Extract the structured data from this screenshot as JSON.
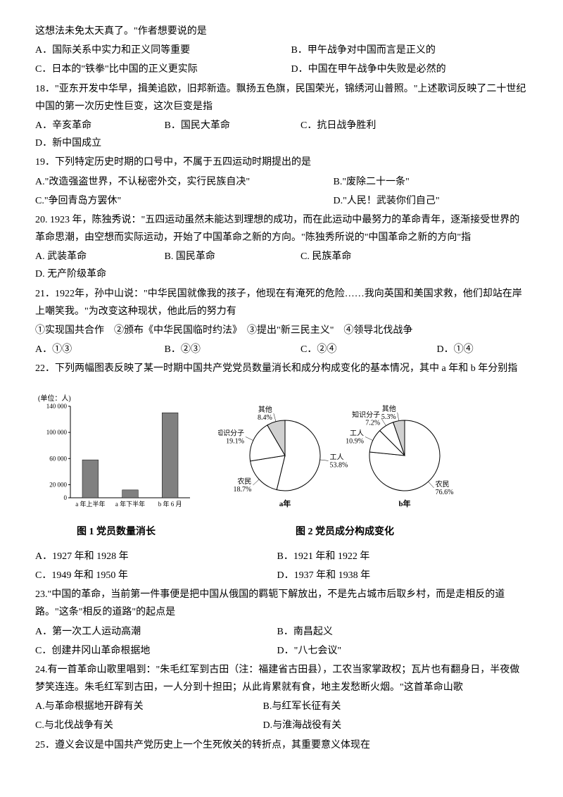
{
  "q17": {
    "intro": "这想法未免太天真了。\"作者想要说的是",
    "A": "A．国际关系中实力和正义同等重要",
    "B": "B．甲午战争对中国而言是正义的",
    "C": "C．日本的\"铁拳\"比中国的正义更实际",
    "D": "D．中国在甲午战争中失败是必然的"
  },
  "q18": {
    "stem": "18．\"亚东开发中华早，揖美追欧，旧邦新造。飘扬五色旗，民国荣光，锦绣河山普照。\"上述歌词反映了二十世纪中国的第一次历史性巨变，这次巨变是指",
    "A": "A．辛亥革命",
    "B": "B．国民大革命",
    "C": "C．抗日战争胜利",
    "D": "D．新中国成立"
  },
  "q19": {
    "stem": "19．下列特定历史时期的口号中，不属于五四运动时期提出的是",
    "A": "A.\"改造强盗世界，不认秘密外交，实行民族自决\"",
    "B": "B.\"废除二十一条\"",
    "C": "C.\"争回青岛方罢休\"",
    "D": "D.\"人民！武装你们自己\""
  },
  "q20": {
    "stem": "20. 1923 年，陈独秀说：\"五四运动虽然未能达到理想的成功，而在此运动中最努力的革命青年，逐渐接受世界的革命思潮，由空想而实际运动，开始了中国革命之新的方向。\"陈独秀所说的\"中国革命之新的方向\"指",
    "A": "A. 武装革命",
    "B": "B. 国民革命",
    "C": "C. 民族革命",
    "D": "D. 无产阶级革命"
  },
  "q21": {
    "stem": "21．1922年，孙中山说：\"中华民国就像我的孩子，他现在有淹死的危险……我向英国和美国求救，他们却站在岸上嘲笑我。\"为改变这种现状，他此后的努力有",
    "opts_line": "①实现国共合作　②颁布《中华民国临时约法》　③提出\"新三民主义\"　④领导北伐战争",
    "A": "A．①③",
    "B": "B．②③",
    "C": "C．②④",
    "D": "D．①④"
  },
  "q22": {
    "stem": "22．下列两幅图表反映了某一时期中国共产党党员数量消长和成分构成变化的基本情况，其中 a 年和 b 年分别指",
    "bar_chart": {
      "type": "bar",
      "y_unit_label": "(单位：人)",
      "y_ticks": [
        0,
        20000,
        60000,
        100000,
        140000
      ],
      "y_tick_labels": [
        "0",
        "20 000",
        "60 000",
        "100 000",
        "140 000"
      ],
      "ylim": [
        0,
        140000
      ],
      "categories": [
        "a 年上半年",
        "a 年下半年",
        "b 年 6 月"
      ],
      "values": [
        58000,
        12000,
        130000
      ],
      "bar_color": "#808080",
      "axis_color": "#000000",
      "background_color": "#ffffff",
      "bar_width_ratio": 0.4,
      "caption": "图 1  党员数量消长"
    },
    "pie_a": {
      "type": "pie",
      "title": "a年",
      "slices": [
        {
          "label": "工人",
          "pct": 53.8,
          "color": "#ffffff"
        },
        {
          "label": "农民",
          "pct": 18.7,
          "color": "#ffffff"
        },
        {
          "label": "知识分子",
          "pct": 19.1,
          "color": "#ffffff"
        },
        {
          "label": "其他",
          "pct": 8.4,
          "color": "#d0d0d0"
        }
      ],
      "outline_color": "#000000",
      "label_fontsize": 10
    },
    "pie_b": {
      "type": "pie",
      "title": "b年",
      "slices": [
        {
          "label": "农民",
          "pct": 76.6,
          "color": "#ffffff"
        },
        {
          "label": "工人",
          "pct": 10.9,
          "color": "#ffffff"
        },
        {
          "label": "知识分子",
          "pct": 7.2,
          "color": "#ffffff"
        },
        {
          "label": "其他",
          "pct": 5.3,
          "color": "#d0d0d0"
        }
      ],
      "outline_color": "#000000",
      "label_fontsize": 10
    },
    "pies_caption": "图 2  党员成分构成变化",
    "A": "A．1927 年和 1928 年",
    "B": "B．1921 年和 1922 年",
    "C": "C．1949 年和 1950 年",
    "D": "D．1937 年和 1938 年"
  },
  "q23": {
    "stem": "23.\"中国的革命，当前第一件事便是把中国从俄国的羁轭下解放出，不是先占城市后取乡村，而是走相反的道路。\"这条\"相反的道路\"的起点是",
    "A": "A．第一次工人运动高潮",
    "B": "B．南昌起义",
    "C": "C．创建井冈山革命根据地",
    "D": "D．\"八七会议\""
  },
  "q24": {
    "stem": "24.有一首革命山歌里唱到：\"朱毛红军到古田（注：福建省古田县），工农当家掌政权；瓦片也有翻身日，半夜做梦笑连连。朱毛红军到古田，一人分到十担田；从此肯累就有食，地主发愁断火烟。\"这首革命山歌",
    "A": "A.与革命根据地开辟有关",
    "B": "B.与红军长征有关",
    "C": "C.与北伐战争有关",
    "D": "D.与淮海战役有关"
  },
  "q25": {
    "stem": "25．遵义会议是中国共产党历史上一个生死攸关的转折点，其重要意义体现在"
  }
}
